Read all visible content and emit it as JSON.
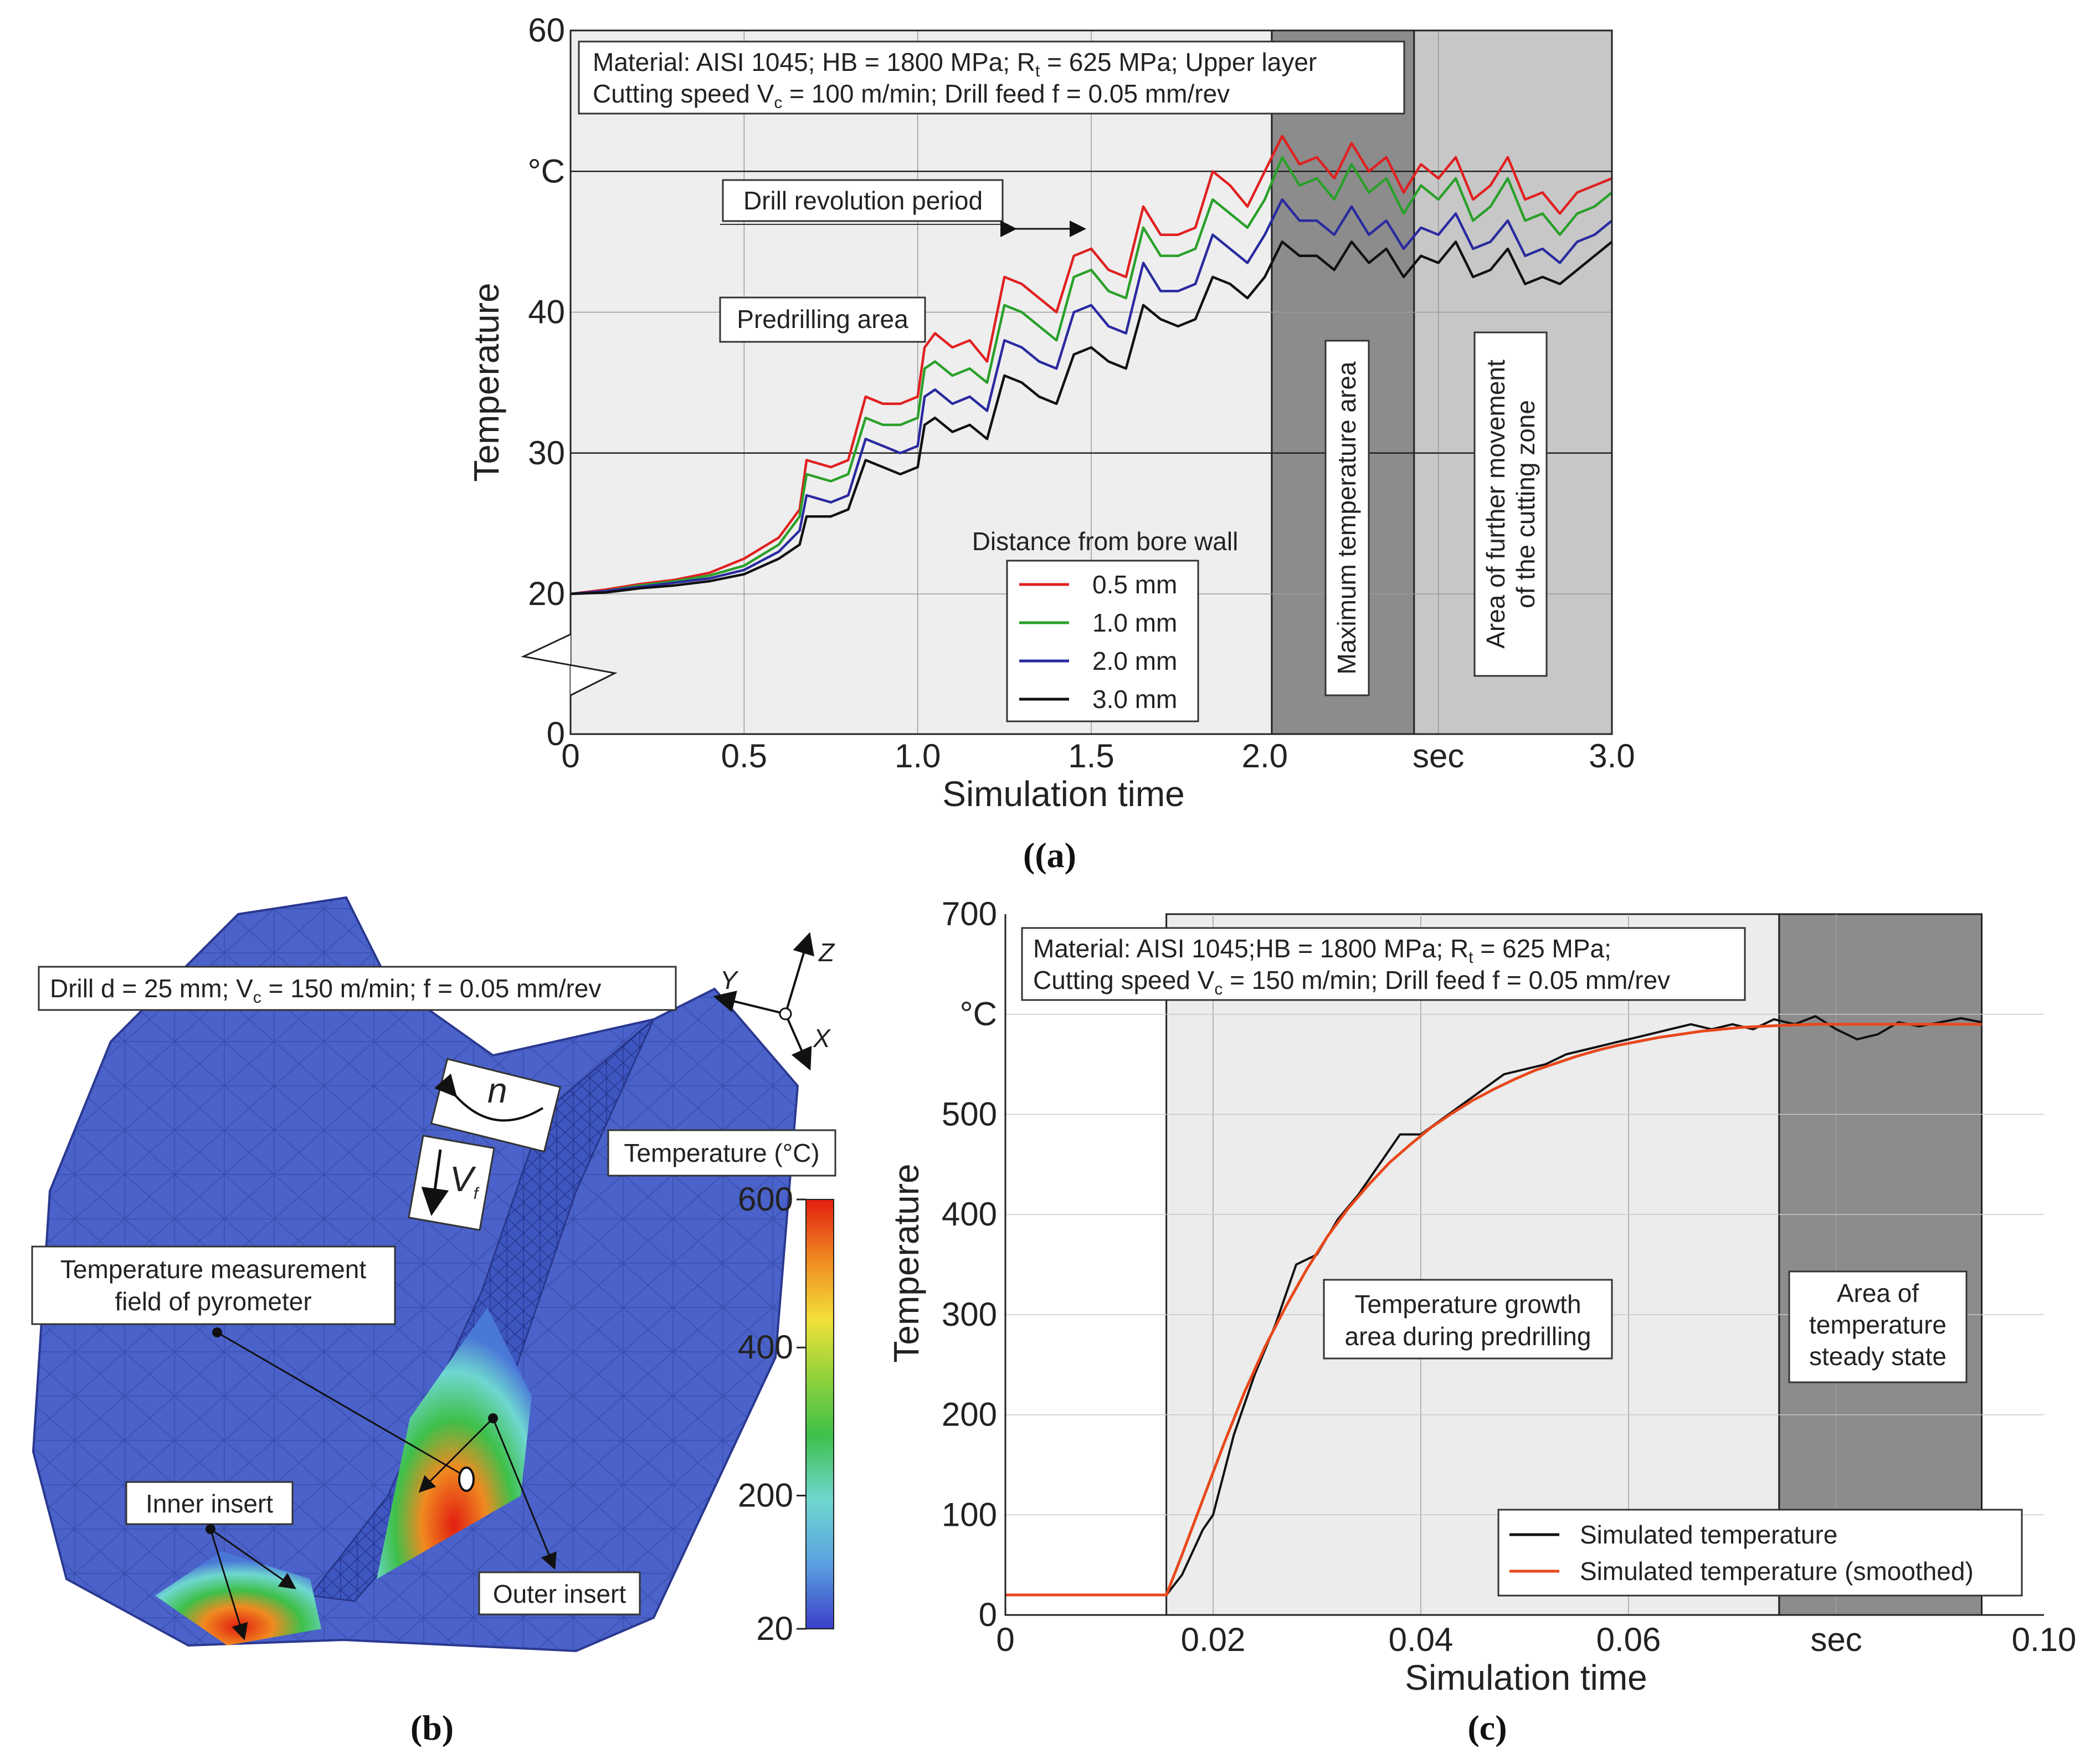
{
  "chart_data": [
    {
      "panel": "(a)",
      "type": "line",
      "xlabel": "Simulation time",
      "ylabel": "Temperature",
      "y_unit": "°C",
      "x_unit": "sec",
      "xlim": [
        0,
        3.0
      ],
      "ylim": [
        0,
        60
      ],
      "axis_break": "0–20",
      "x_ticks": [
        "0",
        "0.5",
        "1.0",
        "1.5",
        "2.0",
        "sec",
        "3.0"
      ],
      "y_ticks": [
        "0",
        "20",
        "30",
        "40",
        "°C",
        "60"
      ],
      "info_line1": "Material: AISI 1045; HB = 1800 MPa; R",
      "info_line1_sub": "t",
      "info_line1_end": " = 625 MPa; Upper layer",
      "info_line2": "Cutting speed V",
      "info_line2_sub": "c",
      "info_line2_end": " = 100 m/min; Drill feed f = 0.05 mm/rev",
      "annotation_revolution": "Drill revolution period",
      "annotation_predrilling": "Predrilling area",
      "annotation_max": "Maximum temperature area",
      "annotation_further": [
        "Area of further movement",
        "of the cutting zone"
      ],
      "legend_title": "Distance from bore wall",
      "zones": [
        {
          "name": "predrilling",
          "x0": 0,
          "x1": 2.02,
          "color": "#eeeeee"
        },
        {
          "name": "maximum",
          "x0": 2.02,
          "x1": 2.43,
          "color": "#8c8c8c"
        },
        {
          "name": "further",
          "x0": 2.43,
          "x1": 3.0,
          "color": "#c7c7c7"
        }
      ],
      "x": [
        0,
        0.1,
        0.2,
        0.3,
        0.4,
        0.5,
        0.6,
        0.66,
        0.68,
        0.75,
        0.8,
        0.85,
        0.9,
        0.95,
        1.0,
        1.02,
        1.05,
        1.1,
        1.15,
        1.2,
        1.25,
        1.3,
        1.35,
        1.4,
        1.45,
        1.5,
        1.55,
        1.6,
        1.65,
        1.7,
        1.75,
        1.8,
        1.85,
        1.9,
        1.95,
        2.0,
        2.05,
        2.1,
        2.15,
        2.2,
        2.25,
        2.3,
        2.35,
        2.4,
        2.45,
        2.5,
        2.55,
        2.6,
        2.65,
        2.7,
        2.75,
        2.8,
        2.85,
        2.9,
        2.95,
        3.0
      ],
      "series": [
        {
          "name": "0.5 mm",
          "color": "#e02020",
          "values": [
            20,
            20.3,
            20.7,
            21.0,
            21.5,
            22.5,
            24.0,
            26.0,
            29.5,
            29.0,
            29.5,
            34.0,
            33.5,
            33.5,
            34.0,
            37.5,
            38.5,
            37.5,
            38.0,
            36.5,
            42.5,
            42.0,
            41.0,
            40.0,
            44.0,
            44.5,
            43.0,
            42.5,
            47.5,
            45.5,
            45.5,
            46.0,
            50.0,
            49.0,
            47.5,
            50.0,
            52.5,
            50.5,
            51.0,
            49.5,
            52.0,
            50.0,
            51.0,
            48.5,
            50.5,
            49.5,
            51.0,
            48.0,
            49.0,
            51.0,
            48.0,
            48.5,
            47.0,
            48.5,
            49.0,
            49.5
          ]
        },
        {
          "name": "1.0 mm",
          "color": "#2aa02a",
          "values": [
            20,
            20.2,
            20.6,
            20.9,
            21.3,
            22.0,
            23.5,
            25.5,
            28.5,
            28.0,
            28.5,
            32.5,
            32.0,
            32.0,
            32.5,
            36.0,
            36.5,
            35.5,
            36.0,
            35.0,
            40.5,
            40.0,
            39.0,
            38.0,
            42.5,
            43.0,
            41.5,
            41.0,
            46.0,
            44.0,
            44.0,
            44.5,
            48.0,
            47.0,
            46.0,
            48.0,
            51.0,
            49.0,
            49.5,
            48.0,
            50.5,
            48.5,
            49.5,
            47.0,
            49.0,
            48.0,
            49.5,
            46.5,
            47.5,
            49.5,
            46.5,
            47.0,
            45.5,
            47.0,
            47.5,
            48.5
          ]
        },
        {
          "name": "2.0 mm",
          "color": "#2a2aa0",
          "values": [
            20,
            20.2,
            20.5,
            20.8,
            21.1,
            21.7,
            23.0,
            24.5,
            27.0,
            26.5,
            27.0,
            31.0,
            30.5,
            30.0,
            30.5,
            34.0,
            34.5,
            33.5,
            34.0,
            33.0,
            38.0,
            37.5,
            36.5,
            36.0,
            40.0,
            40.5,
            39.0,
            38.5,
            43.5,
            41.5,
            41.5,
            42.0,
            45.5,
            44.5,
            43.5,
            45.5,
            48.0,
            46.5,
            46.5,
            45.5,
            47.5,
            45.5,
            46.5,
            44.5,
            46.0,
            45.5,
            47.0,
            44.5,
            45.0,
            46.5,
            44.0,
            44.5,
            43.5,
            45.0,
            45.5,
            46.5
          ]
        },
        {
          "name": "3.0 mm",
          "color": "#111111",
          "values": [
            20,
            20.1,
            20.4,
            20.6,
            20.9,
            21.4,
            22.5,
            23.5,
            25.5,
            25.5,
            26.0,
            29.5,
            29.0,
            28.5,
            29.0,
            32.0,
            32.5,
            31.5,
            32.0,
            31.0,
            35.5,
            35.0,
            34.0,
            33.5,
            37.0,
            37.5,
            36.5,
            36.0,
            40.5,
            39.5,
            39.0,
            39.5,
            42.5,
            42.0,
            41.0,
            42.5,
            45.0,
            44.0,
            44.0,
            43.0,
            45.0,
            43.5,
            44.5,
            42.5,
            44.0,
            43.5,
            45.0,
            42.5,
            43.0,
            44.5,
            42.0,
            42.5,
            42.0,
            43.0,
            44.0,
            45.0
          ]
        }
      ]
    },
    {
      "panel": "(b)",
      "type": "heatmap",
      "title": "Drill d = 25 mm; V",
      "title_sub": "c",
      "title_end": " = 150 m/min; f = 0.05 mm/rev",
      "colorbar_label": "Temperature (°C)",
      "colorbar_ticks": [
        "20",
        "200",
        "400",
        "600"
      ],
      "colorbar_values": [
        20,
        200,
        400,
        600
      ],
      "label_pyrometer": [
        "Temperature measurement",
        "field of pyrometer"
      ],
      "label_inner": "Inner insert",
      "label_outer": "Outer insert",
      "axis_labels": [
        "Y",
        "Z",
        "X"
      ],
      "symbol_n": "n",
      "symbol_vf": "V",
      "symbol_vf_sub": "f"
    },
    {
      "panel": "(c)",
      "type": "line",
      "xlabel": "Simulation time",
      "ylabel": "Temperature",
      "y_unit": "°C",
      "x_unit": "sec",
      "xlim": [
        0,
        0.1
      ],
      "ylim": [
        0,
        700
      ],
      "x_ticks": [
        "0",
        "0.02",
        "0.04",
        "0.06",
        "sec",
        "0.10"
      ],
      "y_ticks": [
        "0",
        "100",
        "200",
        "300",
        "400",
        "500",
        "°C",
        "700"
      ],
      "info_line1": "Material: AISI 1045;HB = 1800 MPa; R",
      "info_line1_sub": "t",
      "info_line1_end": " = 625 MPa;",
      "info_line2": "Cutting speed V",
      "info_line2_sub": "c",
      "info_line2_end": " = 150 m/min; Drill feed f = 0.05 mm/rev",
      "annotation_growth": [
        "Temperature growth",
        "area during predrilling"
      ],
      "annotation_steady": [
        "Area of",
        "temperature",
        "steady state"
      ],
      "zones": [
        {
          "name": "growth",
          "x0": 0.0155,
          "x1": 0.0745,
          "color": "#ececec"
        },
        {
          "name": "steady",
          "x0": 0.0745,
          "x1": 0.094,
          "color": "#8c8c8c"
        }
      ],
      "series": [
        {
          "name": "Simulated temperature",
          "color": "#111111",
          "x": [
            0,
            0.0155,
            0.017,
            0.019,
            0.02,
            0.022,
            0.024,
            0.026,
            0.028,
            0.03,
            0.032,
            0.034,
            0.036,
            0.038,
            0.04,
            0.042,
            0.044,
            0.046,
            0.048,
            0.05,
            0.052,
            0.054,
            0.056,
            0.058,
            0.06,
            0.062,
            0.064,
            0.066,
            0.068,
            0.07,
            0.072,
            0.074,
            0.076,
            0.078,
            0.08,
            0.082,
            0.084,
            0.086,
            0.088,
            0.09,
            0.092,
            0.094
          ],
          "values": [
            20,
            20,
            40,
            85,
            100,
            180,
            240,
            290,
            350,
            360,
            395,
            420,
            450,
            480,
            480,
            495,
            510,
            525,
            540,
            545,
            550,
            560,
            565,
            570,
            575,
            580,
            585,
            590,
            585,
            590,
            585,
            595,
            590,
            598,
            585,
            575,
            580,
            592,
            588,
            592,
            596,
            592
          ]
        },
        {
          "name": "Simulated temperature (smoothed)",
          "color": "#e8481c",
          "x": [
            0,
            0.0155,
            0.017,
            0.019,
            0.021,
            0.023,
            0.025,
            0.027,
            0.029,
            0.031,
            0.033,
            0.035,
            0.037,
            0.039,
            0.041,
            0.043,
            0.045,
            0.047,
            0.049,
            0.051,
            0.053,
            0.055,
            0.057,
            0.059,
            0.061,
            0.063,
            0.065,
            0.067,
            0.069,
            0.071,
            0.073,
            0.075,
            0.078,
            0.081,
            0.084,
            0.087,
            0.09,
            0.094
          ],
          "values": [
            20,
            20,
            60,
            115,
            170,
            222,
            268,
            308,
            345,
            378,
            406,
            430,
            452,
            470,
            487,
            501,
            514,
            525,
            535,
            544,
            551,
            558,
            564,
            569,
            573,
            577,
            580,
            583,
            585,
            587,
            588,
            589,
            590,
            590,
            590,
            590,
            590,
            590
          ]
        }
      ]
    }
  ],
  "captions": {
    "a": "(a)",
    "b": "(b)",
    "c": "(c)"
  }
}
